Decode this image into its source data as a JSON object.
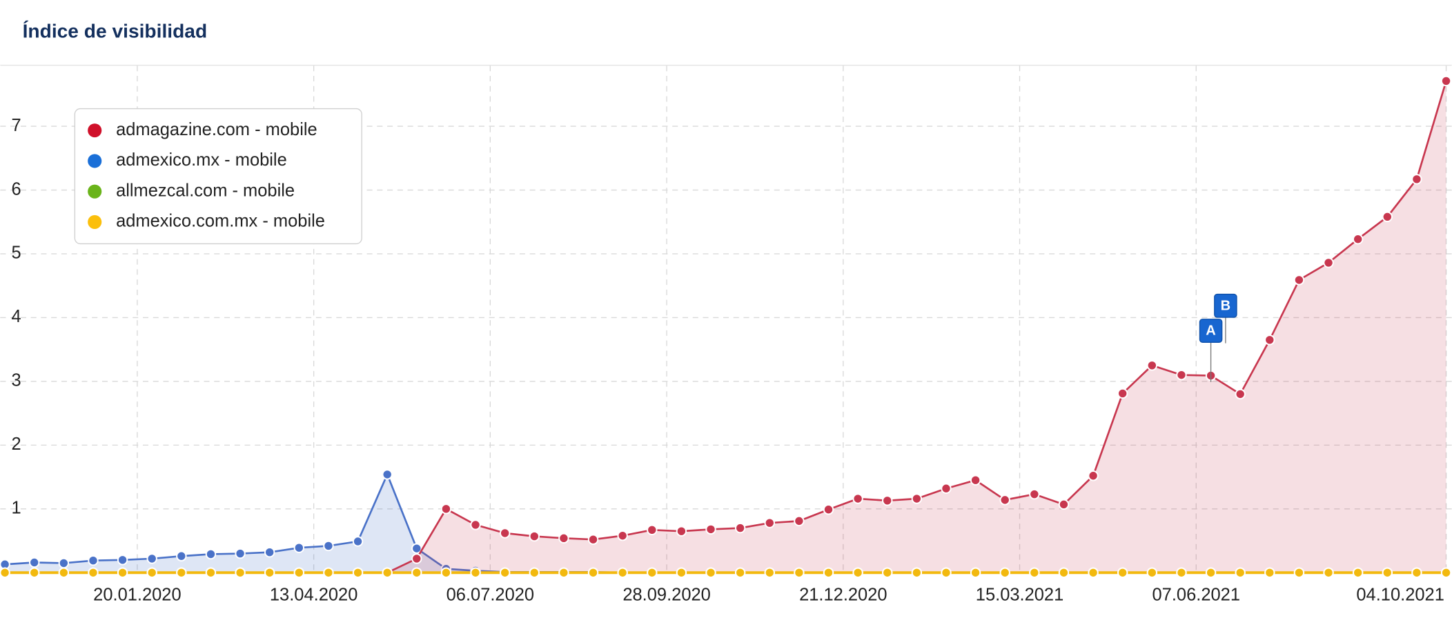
{
  "chart_data": {
    "type": "line",
    "title": "Índice de visibilidad",
    "x": [
      "18.11.2019",
      "02.12.2019",
      "16.12.2019",
      "30.12.2019",
      "13.01.2020",
      "27.01.2020",
      "10.02.2020",
      "24.02.2020",
      "09.03.2020",
      "23.03.2020",
      "06.04.2020",
      "20.04.2020",
      "04.05.2020",
      "18.05.2020",
      "01.06.2020",
      "15.06.2020",
      "29.06.2020",
      "13.07.2020",
      "27.07.2020",
      "10.08.2020",
      "24.08.2020",
      "07.09.2020",
      "21.09.2020",
      "05.10.2020",
      "19.10.2020",
      "02.11.2020",
      "16.11.2020",
      "30.11.2020",
      "14.12.2020",
      "28.12.2020",
      "11.01.2021",
      "25.01.2021",
      "08.02.2021",
      "22.02.2021",
      "08.03.2021",
      "22.03.2021",
      "05.04.2021",
      "19.04.2021",
      "03.05.2021",
      "17.05.2021",
      "31.05.2021",
      "14.06.2021",
      "28.06.2021",
      "12.07.2021",
      "26.07.2021",
      "09.08.2021",
      "23.08.2021",
      "06.09.2021",
      "20.09.2021",
      "04.10.2021"
    ],
    "series": [
      {
        "name": "admagazine.com - mobile",
        "color": "#d0102a",
        "line_color": "#c8374f",
        "fill": "rgba(200,55,79,0.16)",
        "values": [
          0,
          0,
          0,
          0,
          0,
          0,
          0,
          0,
          0,
          0,
          0,
          0,
          0,
          0,
          0.22,
          1.0,
          0.75,
          0.62,
          0.57,
          0.54,
          0.52,
          0.58,
          0.67,
          0.65,
          0.68,
          0.7,
          0.78,
          0.81,
          0.99,
          1.16,
          1.13,
          1.16,
          1.32,
          1.45,
          1.14,
          1.23,
          1.07,
          1.52,
          2.81,
          3.25,
          3.1,
          3.09,
          2.8,
          3.65,
          4.59,
          4.86,
          5.23,
          5.58,
          6.17,
          7.71
        ]
      },
      {
        "name": "admexico.mx - mobile",
        "color": "#1a6fd8",
        "line_color": "#4a72c8",
        "fill": "rgba(74,114,200,0.18)",
        "values": [
          0.13,
          0.16,
          0.15,
          0.19,
          0.2,
          0.22,
          0.26,
          0.29,
          0.3,
          0.32,
          0.39,
          0.42,
          0.49,
          1.54,
          0.38,
          0.06,
          0.03,
          0.01,
          0.01,
          0.01,
          0.01,
          0,
          0,
          0,
          0,
          0,
          0,
          0,
          0,
          0,
          0,
          0,
          0,
          0,
          0,
          0,
          0,
          0,
          0,
          0,
          0,
          0,
          0,
          0,
          0,
          0,
          0,
          0,
          0,
          0
        ]
      },
      {
        "name": "allmezcal.com - mobile",
        "color": "#6ab41a",
        "line_color": "#6ab41a",
        "fill": "none",
        "values": [
          0,
          0,
          0,
          0,
          0,
          0,
          0,
          0,
          0,
          0,
          0,
          0,
          0,
          0,
          0,
          0,
          0,
          0,
          0,
          0,
          0,
          0,
          0,
          0,
          0,
          0,
          0,
          0,
          0,
          0,
          0,
          0,
          0,
          0,
          0,
          0,
          0,
          0,
          0,
          0,
          0,
          0,
          0,
          0,
          0,
          0,
          0,
          0,
          0,
          0
        ]
      },
      {
        "name": "admexico.com.mx - mobile",
        "color": "#fbbf0c",
        "line_color": "#f2b90f",
        "fill": "none",
        "values": [
          0,
          0,
          0,
          0,
          0,
          0,
          0,
          0,
          0,
          0,
          0,
          0,
          0,
          0,
          0,
          0,
          0,
          0,
          0,
          0,
          0,
          0,
          0,
          0,
          0,
          0,
          0,
          0,
          0,
          0,
          0,
          0,
          0,
          0,
          0,
          0,
          0,
          0,
          0,
          0,
          0,
          0,
          0,
          0,
          0,
          0,
          0,
          0,
          0,
          0
        ]
      }
    ],
    "xlim": [
      "18.11.2019",
      "04.10.2021"
    ],
    "xticks": [
      "20.01.2020",
      "13.04.2020",
      "06.07.2020",
      "28.09.2020",
      "21.12.2020",
      "15.03.2021",
      "07.06.2021",
      "04.10.2021"
    ],
    "ylim": [
      0,
      7.95
    ],
    "yticks": [
      1,
      2,
      3,
      4,
      5,
      6,
      7
    ],
    "grid": true,
    "legend": "upper left",
    "annotations": [
      {
        "label": "A",
        "x": "14.06.2021"
      },
      {
        "label": "B",
        "x": "21.06.2021"
      }
    ]
  }
}
